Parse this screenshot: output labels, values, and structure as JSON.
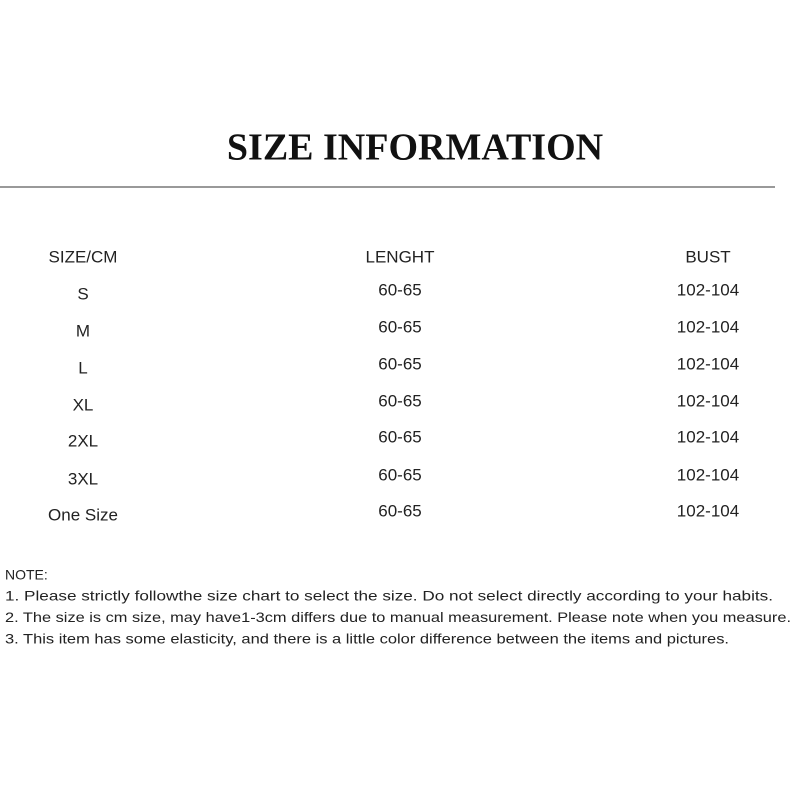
{
  "header": {
    "title": "SIZE INFORMATION"
  },
  "table": {
    "columns": [
      "SIZE/CM",
      "LENGHT",
      "BUST"
    ],
    "rows": [
      [
        "S",
        "60-65",
        "102-104"
      ],
      [
        "M",
        "60-65",
        "102-104"
      ],
      [
        "L",
        "60-65",
        "102-104"
      ],
      [
        "XL",
        "60-65",
        "102-104"
      ],
      [
        "2XL",
        "60-65",
        "102-104"
      ],
      [
        "3XL",
        "60-65",
        "102-104"
      ],
      [
        "One Size",
        "60-65",
        "102-104"
      ]
    ]
  },
  "notes": {
    "heading": "NOTE:",
    "items": [
      "1. Please strictly followthe size chart to select the size. Do not select directly according to your habits.",
      "2. The  size is cm size,  may have1-3cm  differs due to manual  measurement.  Please note when you measure.",
      "3. This  item has some elasticity, and there is a little color difference between the items and pictures."
    ]
  }
}
